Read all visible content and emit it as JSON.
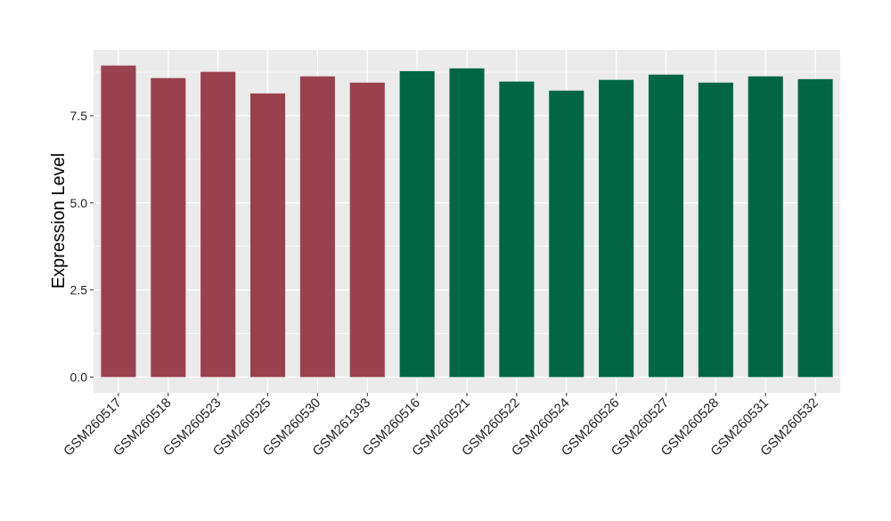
{
  "chart_data": {
    "type": "bar",
    "title": "",
    "xlabel": "",
    "ylabel": "Expression Level",
    "ylim": [
      -0.45,
      9.39
    ],
    "yticks": [
      0,
      2.5,
      5,
      7.5
    ],
    "ytick_labels": [
      "0.0",
      "2.5",
      "5.0",
      "7.5"
    ],
    "grid": true,
    "legend": "none",
    "categories": [
      "GSM260517",
      "GSM260518",
      "GSM260523",
      "GSM260525",
      "GSM260530",
      "GSM261393",
      "GSM260516",
      "GSM260521",
      "GSM260522",
      "GSM260524",
      "GSM260526",
      "GSM260527",
      "GSM260528",
      "GSM260531",
      "GSM260532"
    ],
    "values": [
      8.94,
      8.58,
      8.76,
      8.14,
      8.63,
      8.45,
      8.78,
      8.86,
      8.48,
      8.22,
      8.53,
      8.68,
      8.45,
      8.63,
      8.55
    ],
    "groups": [
      0,
      0,
      0,
      0,
      0,
      0,
      1,
      1,
      1,
      1,
      1,
      1,
      1,
      1,
      1
    ],
    "colors": [
      "#9A4150",
      "#006644"
    ],
    "panel_background": "#EBEBEB"
  }
}
